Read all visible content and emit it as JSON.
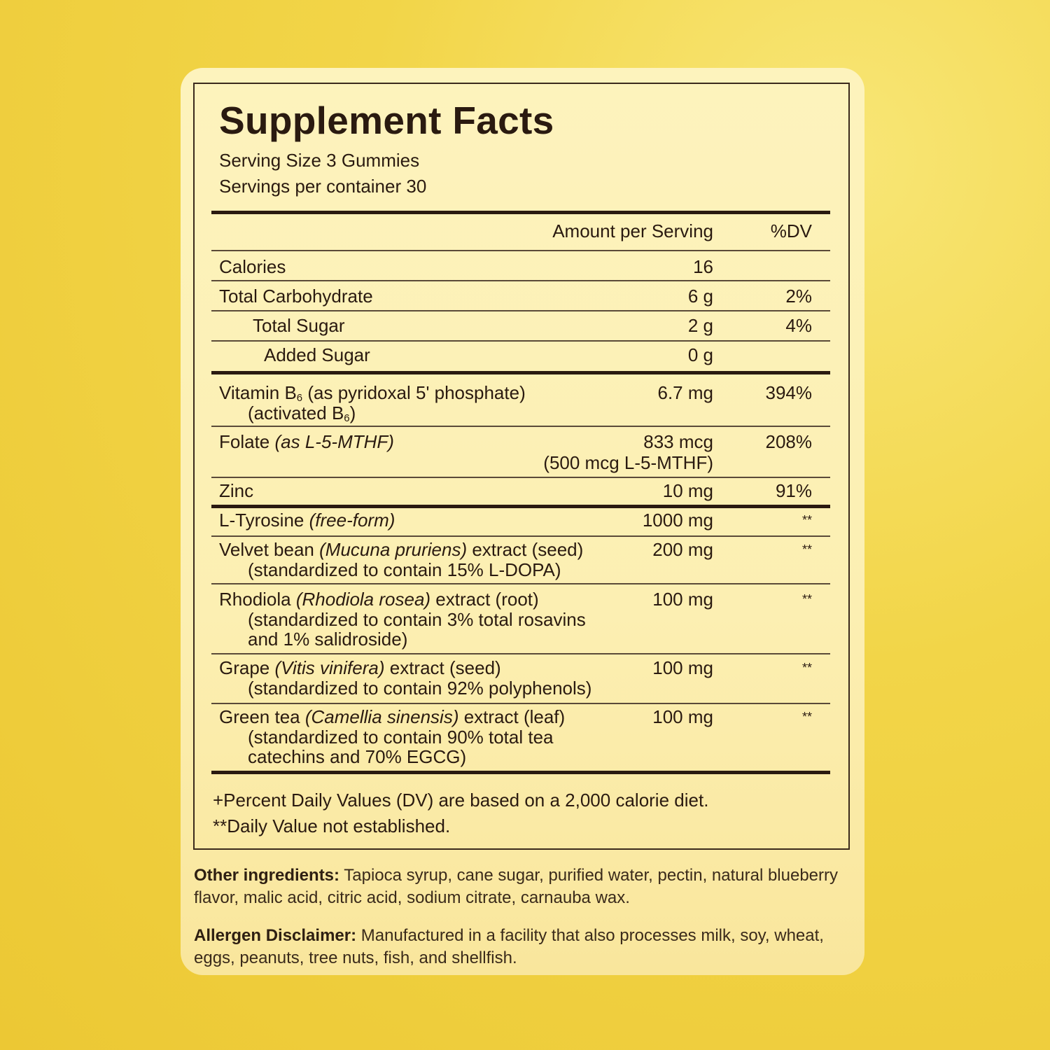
{
  "title": "Supplement Facts",
  "serving_size": "Serving Size 3 Gummies",
  "servings_per_container": "Servings per container 30",
  "header": {
    "amount": "Amount per Serving",
    "dv": "%DV"
  },
  "rows": [
    {
      "lines": [
        [
          {
            "t": "Calories"
          }
        ]
      ],
      "amount": [
        "16"
      ],
      "dv": ""
    },
    {
      "lines": [
        [
          {
            "t": "Total Carbohydrate"
          }
        ]
      ],
      "amount": [
        "6 g"
      ],
      "dv": "2%"
    },
    {
      "lines": [
        [
          {
            "t": "Total Sugar"
          }
        ]
      ],
      "amount": [
        "2 g"
      ],
      "dv": "4%"
    },
    {
      "lines": [
        [
          {
            "t": "Added Sugar"
          }
        ]
      ],
      "amount": [
        "0 g"
      ],
      "dv": ""
    },
    {
      "lines": [
        [
          {
            "t": "Vitamin B"
          },
          {
            "t": "6",
            "s": "sub"
          },
          {
            "t": " (as pyridoxal 5' phosphate)"
          }
        ],
        [
          {
            "t": "(activated B"
          },
          {
            "t": "6",
            "s": "sub"
          },
          {
            "t": ")"
          }
        ]
      ],
      "amount": [
        "6.7 mg"
      ],
      "dv": "394%"
    },
    {
      "lines": [
        [
          {
            "t": "Folate "
          },
          {
            "t": "(as L-5-MTHF)",
            "s": "i"
          }
        ]
      ],
      "amount": [
        "833 mcg",
        "(500 mcg L-5-MTHF)"
      ],
      "dv": "208%"
    },
    {
      "lines": [
        [
          {
            "t": "Zinc"
          }
        ]
      ],
      "amount": [
        "10 mg"
      ],
      "dv": "91%"
    },
    {
      "lines": [
        [
          {
            "t": "L-Tyrosine "
          },
          {
            "t": "(free-form)",
            "s": "i"
          }
        ]
      ],
      "amount": [
        "1000 mg"
      ],
      "dv": "**"
    },
    {
      "lines": [
        [
          {
            "t": "Velvet bean "
          },
          {
            "t": "(Mucuna pruriens)",
            "s": "i"
          },
          {
            "t": " extract (seed)"
          }
        ],
        [
          {
            "t": "(standardized to contain 15% L-DOPA)"
          }
        ]
      ],
      "amount": [
        "200 mg"
      ],
      "dv": "**"
    },
    {
      "lines": [
        [
          {
            "t": "Rhodiola "
          },
          {
            "t": "(Rhodiola rosea)",
            "s": "i"
          },
          {
            "t": " extract (root)"
          }
        ],
        [
          {
            "t": "(standardized to contain 3% total rosavins"
          }
        ],
        [
          {
            "t": "and 1% salidroside)"
          }
        ]
      ],
      "amount": [
        "100 mg"
      ],
      "dv": "**"
    },
    {
      "lines": [
        [
          {
            "t": "Grape "
          },
          {
            "t": "(Vitis vinifera)",
            "s": "i"
          },
          {
            "t": " extract (seed)"
          }
        ],
        [
          {
            "t": "(standardized to contain 92% polyphenols)"
          }
        ]
      ],
      "amount": [
        "100 mg"
      ],
      "dv": "**"
    },
    {
      "lines": [
        [
          {
            "t": "Green tea "
          },
          {
            "t": "(Camellia sinensis)",
            "s": "i"
          },
          {
            "t": " extract (leaf)"
          }
        ],
        [
          {
            "t": "(standardized to contain 90% total tea"
          }
        ],
        [
          {
            "t": "catechins and 70% EGCG)"
          }
        ]
      ],
      "amount": [
        "100 mg"
      ],
      "dv": "**"
    }
  ],
  "footnotes": [
    "+Percent Daily Values (DV) are based on a 2,000 calorie diet.",
    "**Daily Value not established."
  ],
  "other_ingredients": {
    "label": "Other ingredients:",
    "text": " Tapioca syrup, cane sugar, purified water, pectin, natural blueberry flavor, malic acid, citric acid, sodium citrate, carnauba wax."
  },
  "allergen": {
    "label": "Allergen Disclaimer:",
    "text": " Manufactured in a facility that also processes milk, soy, wheat, eggs, peanuts, tree nuts, fish, and shellfish."
  },
  "colors": {
    "background": "#f2d548",
    "card": "#fcf0b5",
    "ink": "#2a1a10"
  }
}
